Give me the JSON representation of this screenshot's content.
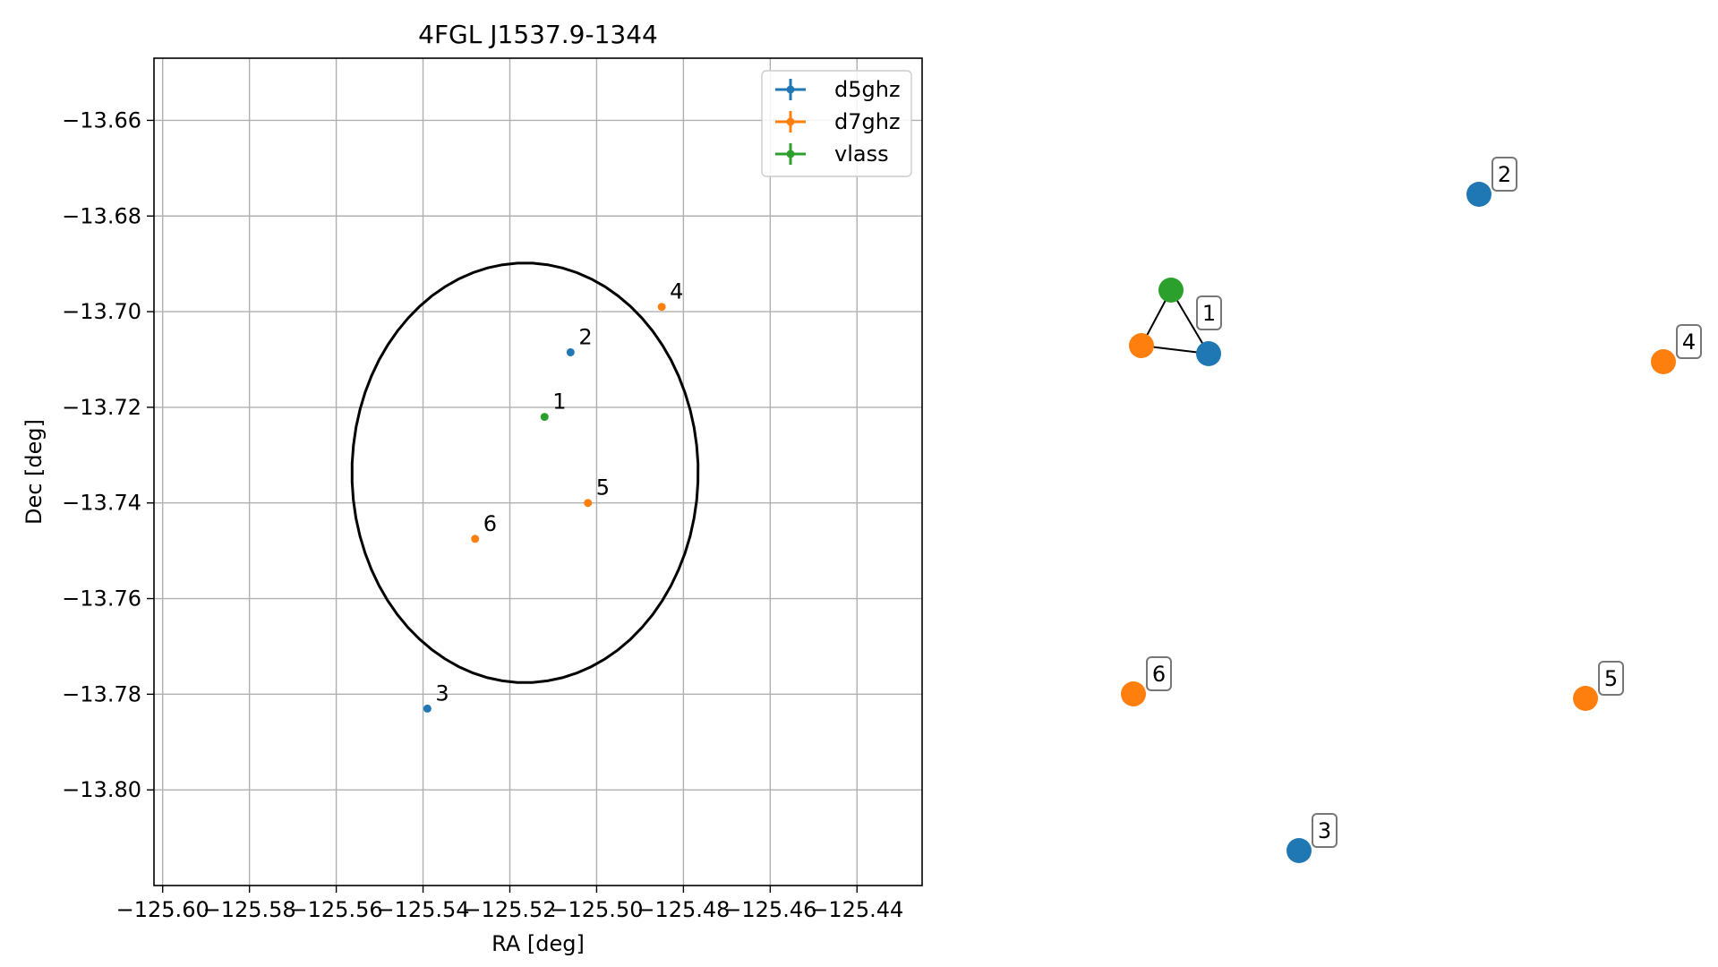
{
  "chart_data": [
    {
      "type": "scatter",
      "title": "4FGL J1537.9-1344",
      "xlabel": "RA [deg]",
      "ylabel": "Dec [deg]",
      "xlim": [
        -125.602,
        -125.425
      ],
      "ylim": [
        -13.82,
        -13.647
      ],
      "xticks": [
        -125.6,
        -125.58,
        -125.56,
        -125.54,
        -125.52,
        -125.5,
        -125.48,
        -125.46,
        -125.44
      ],
      "xtick_labels": [
        "−125.60",
        "−125.58",
        "−125.56",
        "−125.54",
        "−125.52",
        "−125.50",
        "−125.48",
        "−125.46",
        "−125.44"
      ],
      "yticks": [
        -13.66,
        -13.68,
        -13.7,
        -13.72,
        -13.74,
        -13.76,
        -13.78,
        -13.8
      ],
      "ytick_labels": [
        "−13.66",
        "−13.68",
        "−13.70",
        "−13.72",
        "−13.74",
        "−13.76",
        "−13.78",
        "−13.80"
      ],
      "grid": true,
      "legend_position": "top-right",
      "series": [
        {
          "name": "d5ghz",
          "color": "#1f77b4",
          "points": [
            {
              "label": "2",
              "x": -125.506,
              "y": -13.7085
            },
            {
              "label": "3",
              "x": -125.539,
              "y": -13.783
            }
          ]
        },
        {
          "name": "d7ghz",
          "color": "#ff7f0e",
          "points": [
            {
              "label": "4",
              "x": -125.485,
              "y": -13.699
            },
            {
              "label": "5",
              "x": -125.502,
              "y": -13.74
            },
            {
              "label": "6",
              "x": -125.528,
              "y": -13.7475
            }
          ]
        },
        {
          "name": "vlass",
          "color": "#2ca02c",
          "points": [
            {
              "label": "1",
              "x": -125.512,
              "y": -13.722
            }
          ]
        }
      ],
      "ellipse": {
        "color": "#000000",
        "center": [
          -125.5165,
          -13.7337
        ],
        "semi_major_x": 0.042,
        "semi_major_y": 0.0462,
        "note_rotation_deg": -22
      }
    },
    {
      "type": "network",
      "nodes": [
        {
          "label": "1",
          "color": "#2ca02c",
          "cluster": "1"
        },
        {
          "label": "",
          "color": "#ff7f0e",
          "cluster": "1"
        },
        {
          "label": "",
          "color": "#1f77b4",
          "cluster": "1"
        },
        {
          "label": "2",
          "color": "#1f77b4"
        },
        {
          "label": "3",
          "color": "#1f77b4"
        },
        {
          "label": "4",
          "color": "#ff7f0e"
        },
        {
          "label": "5",
          "color": "#ff7f0e"
        },
        {
          "label": "6",
          "color": "#ff7f0e"
        }
      ],
      "edges": [
        [
          0,
          1
        ],
        [
          1,
          2
        ],
        [
          2,
          0
        ]
      ]
    }
  ]
}
